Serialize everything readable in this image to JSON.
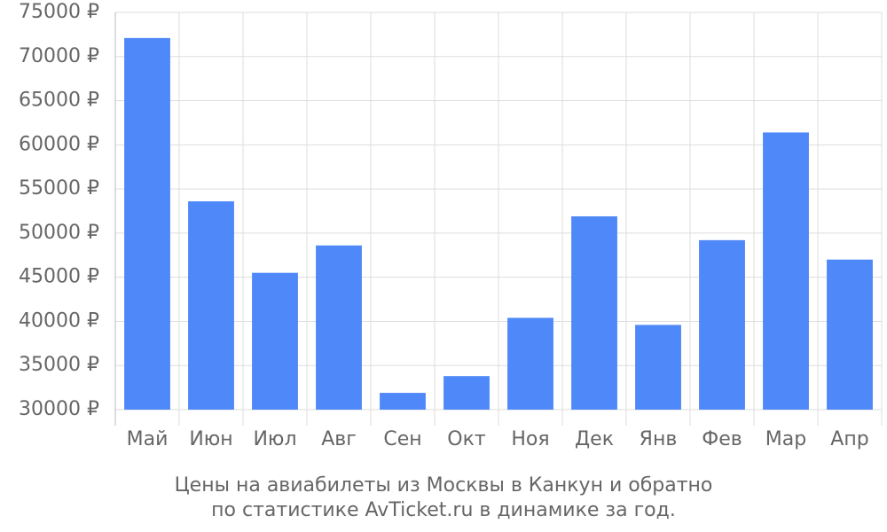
{
  "chart_data": {
    "type": "bar",
    "title": "Цены на авиабилеты из Москвы в Канкун и обратно",
    "subtitle": "по статистике AvTicket.ru в динамике за год.",
    "categories": [
      "Май",
      "Июн",
      "Июл",
      "Авг",
      "Сен",
      "Окт",
      "Ноя",
      "Дек",
      "Янв",
      "Фев",
      "Мар",
      "Апр"
    ],
    "values": [
      72100,
      53600,
      45500,
      48600,
      31900,
      33800,
      40400,
      51900,
      39600,
      49200,
      61400,
      47000
    ],
    "color": "#4f88f8",
    "ylim": [
      30000,
      75000
    ],
    "yticks": [
      {
        "value": 30000,
        "label": "30000 ₽"
      },
      {
        "value": 35000,
        "label": "35000 ₽"
      },
      {
        "value": 40000,
        "label": "40000 ₽"
      },
      {
        "value": 45000,
        "label": "45000 ₽"
      },
      {
        "value": 50000,
        "label": "50000 ₽"
      },
      {
        "value": 55000,
        "label": "55000 ₽"
      },
      {
        "value": 60000,
        "label": "60000 ₽"
      },
      {
        "value": 65000,
        "label": "65000 ₽"
      },
      {
        "value": 70000,
        "label": "70000 ₽"
      },
      {
        "value": 75000,
        "label": "75000 ₽"
      }
    ],
    "grid": true
  }
}
